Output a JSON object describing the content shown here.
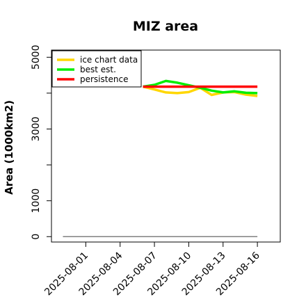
{
  "chart_data": {
    "type": "line",
    "title": "MIZ area",
    "xlabel": "",
    "ylabel": "Area (1000km2)",
    "x_ticks": [
      "2025-08-01",
      "2025-08-04",
      "2025-08-07",
      "2025-08-10",
      "2025-08-13",
      "2025-08-16"
    ],
    "y_ticks": [
      0,
      1000,
      2000,
      3000,
      4000,
      5000
    ],
    "y_tick_labels": [
      "0",
      "1000",
      "",
      "3000",
      "",
      "5000"
    ],
    "xlim": [
      "2025-07-29",
      "2025-08-18"
    ],
    "ylim": [
      -150,
      5200
    ],
    "grid": false,
    "legend": "top-left",
    "baseline": {
      "x": [
        "2025-07-30",
        "2025-08-16"
      ],
      "y": 0,
      "color": "#808080"
    },
    "series": [
      {
        "name": "ice chart data",
        "color": "#FFD700",
        "x": [
          "2025-08-06",
          "2025-08-07",
          "2025-08-08",
          "2025-08-09",
          "2025-08-10",
          "2025-08-11",
          "2025-08-12",
          "2025-08-13",
          "2025-08-14",
          "2025-08-15",
          "2025-08-16"
        ],
        "y": [
          4180,
          4100,
          4020,
          4000,
          4030,
          4150,
          3950,
          4020,
          4030,
          3960,
          3920
        ]
      },
      {
        "name": "best est.",
        "color": "#00EE00",
        "x": [
          "2025-08-06",
          "2025-08-07",
          "2025-08-08",
          "2025-08-09",
          "2025-08-10",
          "2025-08-11",
          "2025-08-12",
          "2025-08-13",
          "2025-08-14",
          "2025-08-15",
          "2025-08-16"
        ],
        "y": [
          4180,
          4230,
          4340,
          4290,
          4220,
          4150,
          4070,
          4020,
          4050,
          4010,
          4000
        ]
      },
      {
        "name": "persistence",
        "color": "#FF0000",
        "x": [
          "2025-08-06",
          "2025-08-16"
        ],
        "y": [
          4180,
          4180
        ]
      }
    ]
  }
}
